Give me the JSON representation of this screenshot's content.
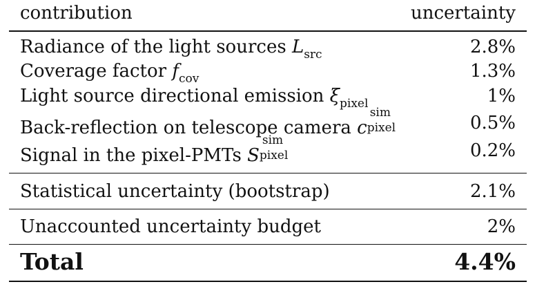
{
  "header": {
    "contribution": "contribution",
    "uncertainty": "uncertainty"
  },
  "rows": [
    {
      "label": "Radiance of the light sources ",
      "sym": "L",
      "sub": "src",
      "sup": "",
      "value": "2.8%"
    },
    {
      "label": "Coverage factor ",
      "sym": "f",
      "sub": "cov",
      "sup": "",
      "value": "1.3%"
    },
    {
      "label": "Light source directional emission ",
      "sym": "ξ",
      "sub": "pixel",
      "sup": "",
      "value": "1%"
    },
    {
      "label": "Back-reflection on telescope camera ",
      "sym": "c",
      "sub": "pixel",
      "sup": "sim",
      "value": "0.5%"
    },
    {
      "label": "Signal in the pixel-PMTs ",
      "sym": "S",
      "sub": "pixel",
      "sup": "sim",
      "value": "0.2%"
    }
  ],
  "statistical": {
    "label": "Statistical uncertainty (bootstrap)",
    "value": "2.1%"
  },
  "unaccounted": {
    "label": "Unaccounted uncertainty budget",
    "value": "2%"
  },
  "total": {
    "label": "Total",
    "value": "4.4%"
  }
}
